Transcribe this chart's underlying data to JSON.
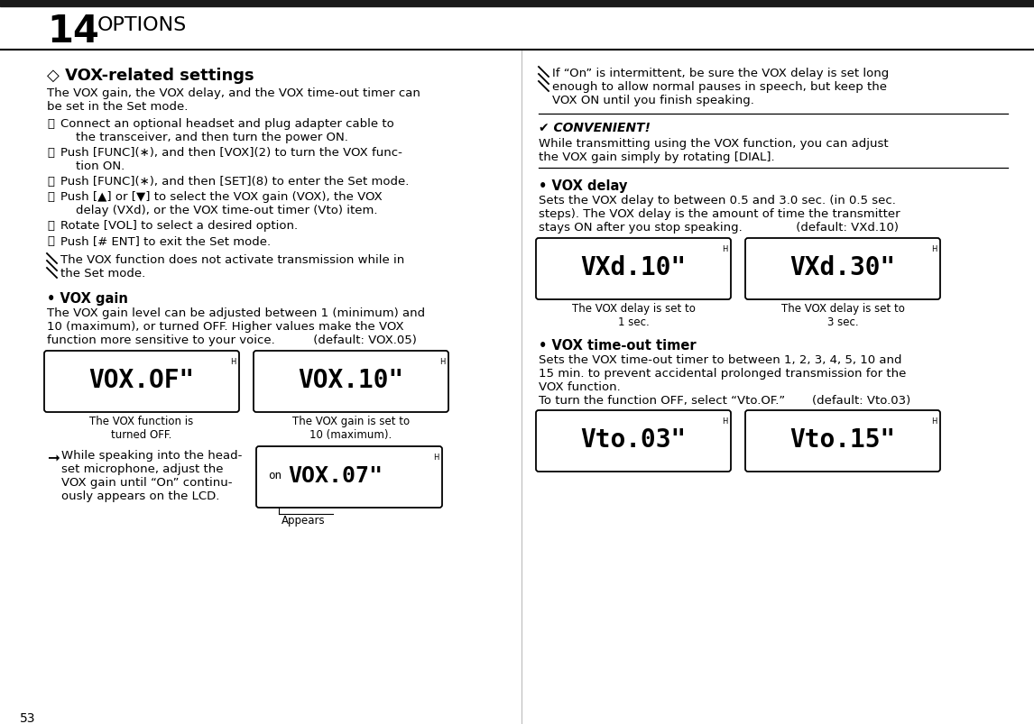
{
  "bg_color": "#ffffff",
  "top_bar_color": "#1a1a1a",
  "header_number": "14",
  "header_title": "OPTIONS",
  "page_number": "53",
  "figw": 11.46,
  "figh": 8.04,
  "dpi": 100
}
